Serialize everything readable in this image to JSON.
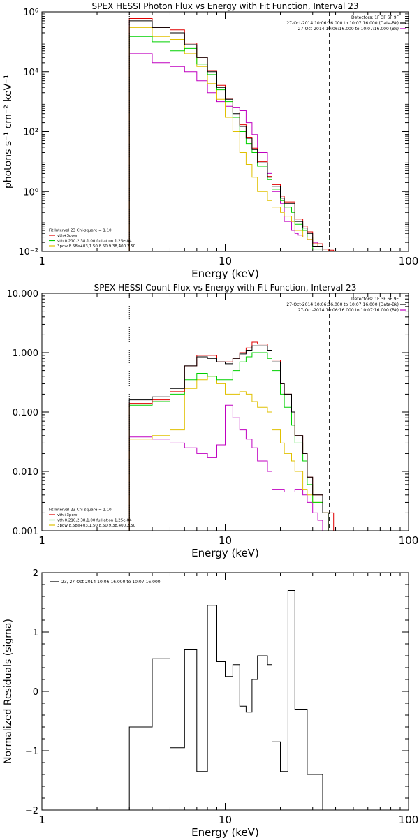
{
  "chart_data": [
    {
      "type": "line",
      "title": "SPEX HESSI Photon Flux vs Energy with Fit Function, Interval 23",
      "xlabel": "Energy (keV)",
      "ylabel": "photons s⁻¹ cm⁻² keV⁻¹",
      "xscale": "log",
      "yscale": "log",
      "xlim": [
        1,
        100
      ],
      "ylim": [
        0.01,
        1000000
      ],
      "xticks": [
        1,
        10,
        100
      ],
      "xtick_labels": [
        "1",
        "10",
        "100"
      ],
      "yticks": [
        0.01,
        1,
        100,
        10000,
        1000000
      ],
      "ytick_labels": [
        "10⁻²",
        "10⁰",
        "10²",
        "10⁴",
        "10⁶"
      ],
      "fit_range_lines": [
        3,
        37
      ],
      "legend_top_right": [
        "Detectors: 1F 3F 6F 9F",
        "27-Oct-2014 10:06:16.000 to 10:07:16.000 (Data-Bk)",
        "27-Oct-2014 10:06:16.000 to 10:07:16.000 (Bk)"
      ],
      "legend_bottom_left": [
        "Fit Interval 23   Chi-square = 1.10",
        "vth+3pow",
        "vth 0.210,2.38,1.00  full ation 1.25e-04",
        "3pow 8.58e+03,1.50,8.50,9.38,400,2.50"
      ],
      "bin_edges": [
        3,
        3.5,
        4,
        4.5,
        5,
        5.5,
        6,
        6.5,
        7,
        7.5,
        8,
        8.5,
        9,
        9.5,
        10,
        10.5,
        11,
        11.5,
        12,
        12.5,
        13,
        13.5,
        14,
        14.5,
        15,
        16,
        17,
        18,
        19,
        20,
        21,
        22,
        23,
        24,
        25,
        26.5,
        28,
        30,
        32,
        34,
        36.5,
        39
      ],
      "series": [
        {
          "name": "Data-Bk",
          "color": "#000000",
          "values": [
            500000,
            500000,
            300000,
            300000,
            200000,
            200000,
            80000,
            80000,
            30000,
            30000,
            10000,
            10000,
            3000,
            3000,
            1200,
            1200,
            400,
            400,
            150,
            150,
            60,
            60,
            25,
            25,
            9,
            9,
            3,
            1.5,
            1.5,
            0.6,
            0.4,
            0.4,
            0.4,
            0.1,
            0.1,
            0.06,
            0.04,
            0.015,
            0.015,
            0.01,
            0.01
          ]
        },
        {
          "name": "vth+3pow",
          "color": "#e00000",
          "values": [
            600000,
            600000,
            300000,
            300000,
            250000,
            250000,
            90000,
            90000,
            30000,
            30000,
            11000,
            11000,
            3500,
            3500,
            1300,
            1300,
            450,
            450,
            170,
            170,
            65,
            65,
            28,
            28,
            10,
            10,
            3.2,
            1.7,
            1.7,
            0.7,
            0.45,
            0.45,
            0.45,
            0.12,
            0.12,
            0.07,
            0.045,
            0.018,
            0.018,
            0.012,
            0.011
          ]
        },
        {
          "name": "vth",
          "color": "#00d000",
          "values": [
            150000,
            150000,
            100000,
            100000,
            50000,
            50000,
            60000,
            60000,
            18000,
            18000,
            8000,
            8000,
            2500,
            2500,
            1000,
            1000,
            300,
            300,
            100,
            100,
            40,
            40,
            20,
            20,
            7,
            7,
            2.5,
            1.2,
            1.2,
            0.5,
            0.3,
            0.3,
            0.2,
            0.08,
            0.08,
            0.05,
            0.03,
            0.012,
            0.012,
            0.01,
            0.01
          ]
        },
        {
          "name": "3pow",
          "color": "#e0c000",
          "values": [
            300000,
            300000,
            150000,
            150000,
            120000,
            120000,
            40000,
            40000,
            15000,
            15000,
            4000,
            4000,
            1200,
            1200,
            300,
            300,
            100,
            100,
            20,
            20,
            8,
            8,
            3,
            3,
            1,
            1,
            0.5,
            0.3,
            0.3,
            0.2,
            0.15,
            0.15,
            0.1,
            0.05,
            0.05,
            0.03,
            0.025,
            0.018,
            0.015,
            0.012,
            0.01
          ]
        },
        {
          "name": "Bk",
          "color": "#c000c0",
          "values": [
            40000,
            40000,
            20000,
            20000,
            15000,
            15000,
            10000,
            10000,
            5000,
            5000,
            2000,
            2000,
            1000,
            1000,
            700,
            700,
            650,
            650,
            500,
            500,
            200,
            200,
            80,
            80,
            20,
            20,
            4,
            1,
            1,
            0.4,
            0.1,
            0.1,
            0.05,
            0.04,
            0.035,
            0.03,
            0.025,
            0.02,
            0.015,
            0.012,
            0.01
          ]
        }
      ]
    },
    {
      "type": "line",
      "title": "SPEX HESSI Count Flux vs Energy with Fit Function, Interval 23",
      "xlabel": "Energy (keV)",
      "ylabel": "",
      "xscale": "log",
      "yscale": "log",
      "xlim": [
        1,
        100
      ],
      "ylim": [
        0.001,
        10
      ],
      "xticks": [
        1,
        10,
        100
      ],
      "xtick_labels": [
        "1",
        "10",
        "100"
      ],
      "yticks": [
        0.001,
        0.01,
        0.1,
        1,
        10
      ],
      "ytick_labels": [
        "0.001",
        "0.010",
        "0.100",
        "1.000",
        "10.000"
      ],
      "fit_range_lines": [
        3,
        37
      ],
      "legend_top_right": [
        "Detectors: 1F 3F 6F 9F",
        "27-Oct-2014 10:06:16.000 to 10:07:16.000 (Data-Bk)",
        "27-Oct-2014 10:06:16.000 to 10:07:16.000 (Bk)"
      ],
      "legend_bottom_left": [
        "Fit Interval 23   Chi-square = 1.10",
        "vth+3pow",
        "vth 0.210,2.38,1.00  full ation 1.25e-04",
        "3pow 8.58e+03,1.50,8.50,9.38,400,2.50"
      ],
      "bin_edges": [
        3,
        3.5,
        4,
        4.5,
        5,
        5.5,
        6,
        6.5,
        7,
        7.5,
        8,
        8.5,
        9,
        9.5,
        10,
        10.5,
        11,
        11.5,
        12,
        12.5,
        13,
        13.5,
        14,
        14.5,
        15,
        16,
        17,
        18,
        19,
        20,
        21,
        22,
        23,
        24,
        25,
        26.5,
        28,
        30,
        32,
        34,
        36.5,
        39
      ],
      "series": [
        {
          "name": "Data-Bk",
          "color": "#000000",
          "values": [
            0.16,
            0.16,
            0.18,
            0.18,
            0.25,
            0.25,
            0.6,
            0.6,
            0.85,
            0.85,
            0.8,
            0.8,
            0.7,
            0.7,
            0.65,
            0.65,
            0.8,
            0.8,
            0.95,
            0.95,
            1.1,
            1.1,
            1.3,
            1.3,
            1.3,
            1.3,
            1.1,
            0.7,
            0.7,
            0.3,
            0.2,
            0.2,
            0.1,
            0.04,
            0.04,
            0.02,
            0.008,
            0.004,
            0.004,
            0.002,
            0.001
          ]
        },
        {
          "name": "vth+3pow",
          "color": "#e00000",
          "values": [
            0.14,
            0.14,
            0.16,
            0.16,
            0.22,
            0.22,
            0.6,
            0.6,
            0.9,
            0.9,
            0.9,
            0.9,
            0.7,
            0.7,
            0.7,
            0.7,
            0.8,
            0.8,
            1.0,
            1.0,
            1.2,
            1.2,
            1.5,
            1.5,
            1.4,
            1.4,
            1.1,
            0.75,
            0.75,
            0.3,
            0.2,
            0.2,
            0.1,
            0.04,
            0.04,
            0.02,
            0.008,
            0.004,
            0.004,
            0.002,
            0.002
          ]
        },
        {
          "name": "vth",
          "color": "#00d000",
          "values": [
            0.13,
            0.13,
            0.15,
            0.15,
            0.2,
            0.2,
            0.35,
            0.35,
            0.45,
            0.45,
            0.4,
            0.4,
            0.35,
            0.35,
            0.35,
            0.35,
            0.5,
            0.5,
            0.7,
            0.7,
            0.85,
            0.85,
            1.0,
            1.0,
            1.0,
            1.0,
            0.8,
            0.5,
            0.5,
            0.2,
            0.12,
            0.12,
            0.06,
            0.03,
            0.03,
            0.015,
            0.006,
            0.003,
            0.003,
            0.002,
            0.001
          ]
        },
        {
          "name": "3pow",
          "color": "#e0c000",
          "values": [
            0.035,
            0.035,
            0.04,
            0.04,
            0.05,
            0.05,
            0.25,
            0.25,
            0.35,
            0.35,
            0.4,
            0.4,
            0.3,
            0.3,
            0.2,
            0.2,
            0.2,
            0.2,
            0.22,
            0.22,
            0.2,
            0.2,
            0.15,
            0.15,
            0.12,
            0.12,
            0.1,
            0.05,
            0.05,
            0.03,
            0.02,
            0.02,
            0.015,
            0.01,
            0.01,
            0.005,
            0.004,
            0.003,
            0.003,
            0.002,
            0.001
          ]
        },
        {
          "name": "Bk",
          "color": "#c000c0",
          "values": [
            0.038,
            0.038,
            0.035,
            0.035,
            0.03,
            0.03,
            0.025,
            0.025,
            0.02,
            0.02,
            0.017,
            0.017,
            0.028,
            0.028,
            0.13,
            0.13,
            0.08,
            0.08,
            0.05,
            0.05,
            0.035,
            0.035,
            0.025,
            0.025,
            0.015,
            0.015,
            0.01,
            0.005,
            0.005,
            0.005,
            0.0045,
            0.0045,
            0.0045,
            0.005,
            0.005,
            0.004,
            0.003,
            0.002,
            0.0015,
            0.001,
            0.001
          ]
        }
      ]
    },
    {
      "type": "line",
      "title": "",
      "xlabel": "Energy (keV)",
      "ylabel": "Normalized Residuals (sigma)",
      "xscale": "log",
      "yscale": "linear",
      "xlim": [
        1,
        100
      ],
      "ylim": [
        -2,
        2
      ],
      "xticks": [
        1,
        10,
        100
      ],
      "xtick_labels": [
        "1",
        "10",
        "100"
      ],
      "yticks": [
        -2,
        -1,
        0,
        1,
        2
      ],
      "ytick_labels": [
        "−2",
        "−1",
        "0",
        "1",
        "2"
      ],
      "legend": "23, 27-Oct-2014 10:06:16.000 to 10:07:16.000",
      "bin_edges": [
        3,
        3.5,
        4,
        4.5,
        5,
        5.5,
        6,
        6.5,
        7,
        7.5,
        8,
        8.5,
        9,
        9.5,
        10,
        10.5,
        11,
        11.5,
        12,
        12.5,
        13,
        13.5,
        14,
        14.5,
        15,
        16,
        17,
        18,
        19,
        20,
        21,
        22,
        23,
        24,
        25,
        26.5,
        28,
        30,
        32,
        34,
        36.5,
        39
      ],
      "series": [
        {
          "color": "#000000",
          "values": [
            -0.6,
            -0.6,
            0.55,
            0.55,
            -0.95,
            -0.95,
            0.7,
            0.7,
            -1.35,
            -1.35,
            1.45,
            1.45,
            0.5,
            0.5,
            0.25,
            0.25,
            0.45,
            0.45,
            -0.25,
            -0.25,
            -0.35,
            -0.35,
            0.2,
            0.2,
            0.6,
            0.6,
            0.45,
            -0.85,
            -0.85,
            -1.35,
            -1.35,
            1.7,
            1.7,
            -0.3,
            -0.3,
            -0.3,
            -1.4,
            -1.4,
            -1.4,
            -2,
            -2
          ]
        }
      ]
    }
  ]
}
